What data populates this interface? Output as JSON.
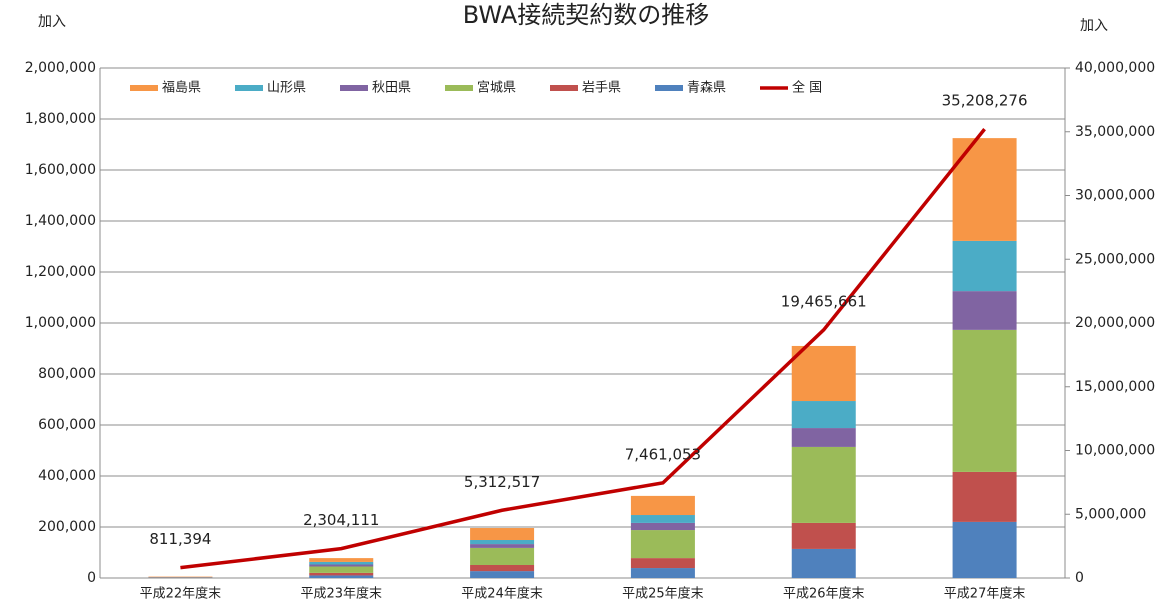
{
  "chart_data": {
    "type": "bar",
    "title": "BWA接続契約数の推移",
    "y_label": "加入",
    "y2_label": "加入",
    "categories": [
      "平成22年度末",
      "平成23年度末",
      "平成24年度末",
      "平成25年度末",
      "平成26年度末",
      "平成27年度末"
    ],
    "ylim": [
      0,
      2000000
    ],
    "yticks": [
      0,
      {
        "value": 200000,
        "label": "200,000"
      },
      {
        "value": 400000,
        "label": "400,000"
      },
      {
        "value": 600000,
        "label": "600,000"
      },
      {
        "value": 800000,
        "label": "800,000"
      },
      {
        "value": 1000000,
        "label": "1,000,000"
      },
      {
        "value": 1200000,
        "label": "1,200,000"
      },
      {
        "value": 1400000,
        "label": "1,400,000"
      },
      {
        "value": 1600000,
        "label": "1,600,000"
      },
      {
        "value": 1800000,
        "label": "1,800,000"
      },
      {
        "value": 2000000,
        "label": "2,000,000"
      }
    ],
    "y2lim": [
      0,
      40000000
    ],
    "y2ticks": [
      0,
      {
        "value": 5000000,
        "label": "5,000,000"
      },
      {
        "value": 10000000,
        "label": "10,000,000"
      },
      {
        "value": 15000000,
        "label": "15,000,000"
      },
      {
        "value": 20000000,
        "label": "20,000,000"
      },
      {
        "value": 25000000,
        "label": "25,000,000"
      },
      {
        "value": 30000000,
        "label": "30,000,000"
      },
      {
        "value": 35000000,
        "label": "35,000,000"
      },
      {
        "value": 40000000,
        "label": "40,000,000"
      }
    ],
    "grid": true,
    "legend": "top",
    "series": [
      {
        "name": "福島県",
        "type": "bar",
        "color": "#f79646",
        "values": [
          1500,
          15000,
          47000,
          75000,
          216000,
          403000
        ]
      },
      {
        "name": "山形県",
        "type": "bar",
        "color": "#4bacc6",
        "values": [
          500,
          10000,
          16000,
          31000,
          106000,
          197000
        ]
      },
      {
        "name": "秋田県",
        "type": "bar",
        "color": "#8064a2",
        "values": [
          500,
          8000,
          15000,
          28000,
          74000,
          152000
        ]
      },
      {
        "name": "宮城県",
        "type": "bar",
        "color": "#9bbb59",
        "values": [
          1000,
          25000,
          67000,
          110000,
          298000,
          557000
        ]
      },
      {
        "name": "岩手県",
        "type": "bar",
        "color": "#c0504d",
        "values": [
          1000,
          10000,
          24000,
          39000,
          102000,
          196000
        ]
      },
      {
        "name": "青森県",
        "type": "bar",
        "color": "#4f81bd",
        "values": [
          1000,
          10000,
          27000,
          39000,
          114000,
          220000
        ]
      },
      {
        "name": "全 国",
        "type": "line",
        "axis": "y2",
        "color": "#c00000",
        "values": [
          811394,
          2304111,
          5312517,
          7461053,
          19465661,
          35208276
        ],
        "value_labels": [
          "811,394",
          "2,304,111",
          "5,312,517",
          "7,461,053",
          "19,465,661",
          "35,208,276"
        ]
      }
    ]
  }
}
